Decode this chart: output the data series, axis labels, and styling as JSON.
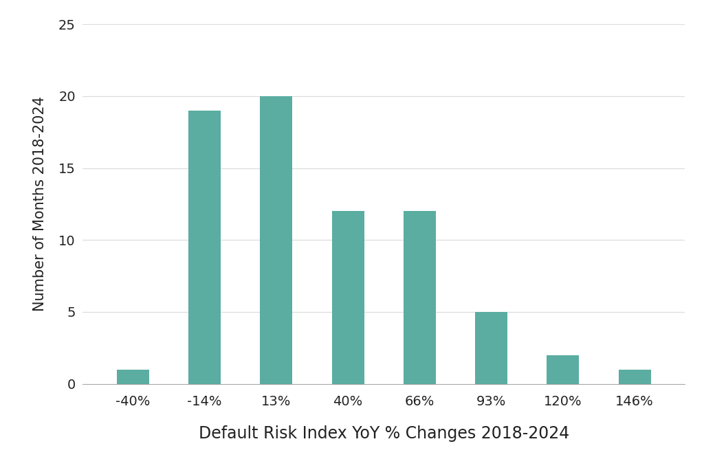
{
  "categories": [
    "-40%",
    "-14%",
    "13%",
    "40%",
    "66%",
    "93%",
    "120%",
    "146%"
  ],
  "values": [
    1,
    19,
    20,
    12,
    12,
    5,
    2,
    1
  ],
  "bar_color": "#5aada0",
  "xlabel": "Default Risk Index YoY % Changes 2018-2024",
  "ylabel": "Number of Months 2018-2024",
  "ylim": [
    0,
    25
  ],
  "yticks": [
    0,
    5,
    10,
    15,
    20,
    25
  ],
  "background_color": "#ffffff",
  "xlabel_fontsize": 17,
  "ylabel_fontsize": 15,
  "tick_fontsize": 14,
  "bar_width": 0.45,
  "grid_color": "#dddddd",
  "spine_color": "#aaaaaa",
  "text_color": "#222222"
}
